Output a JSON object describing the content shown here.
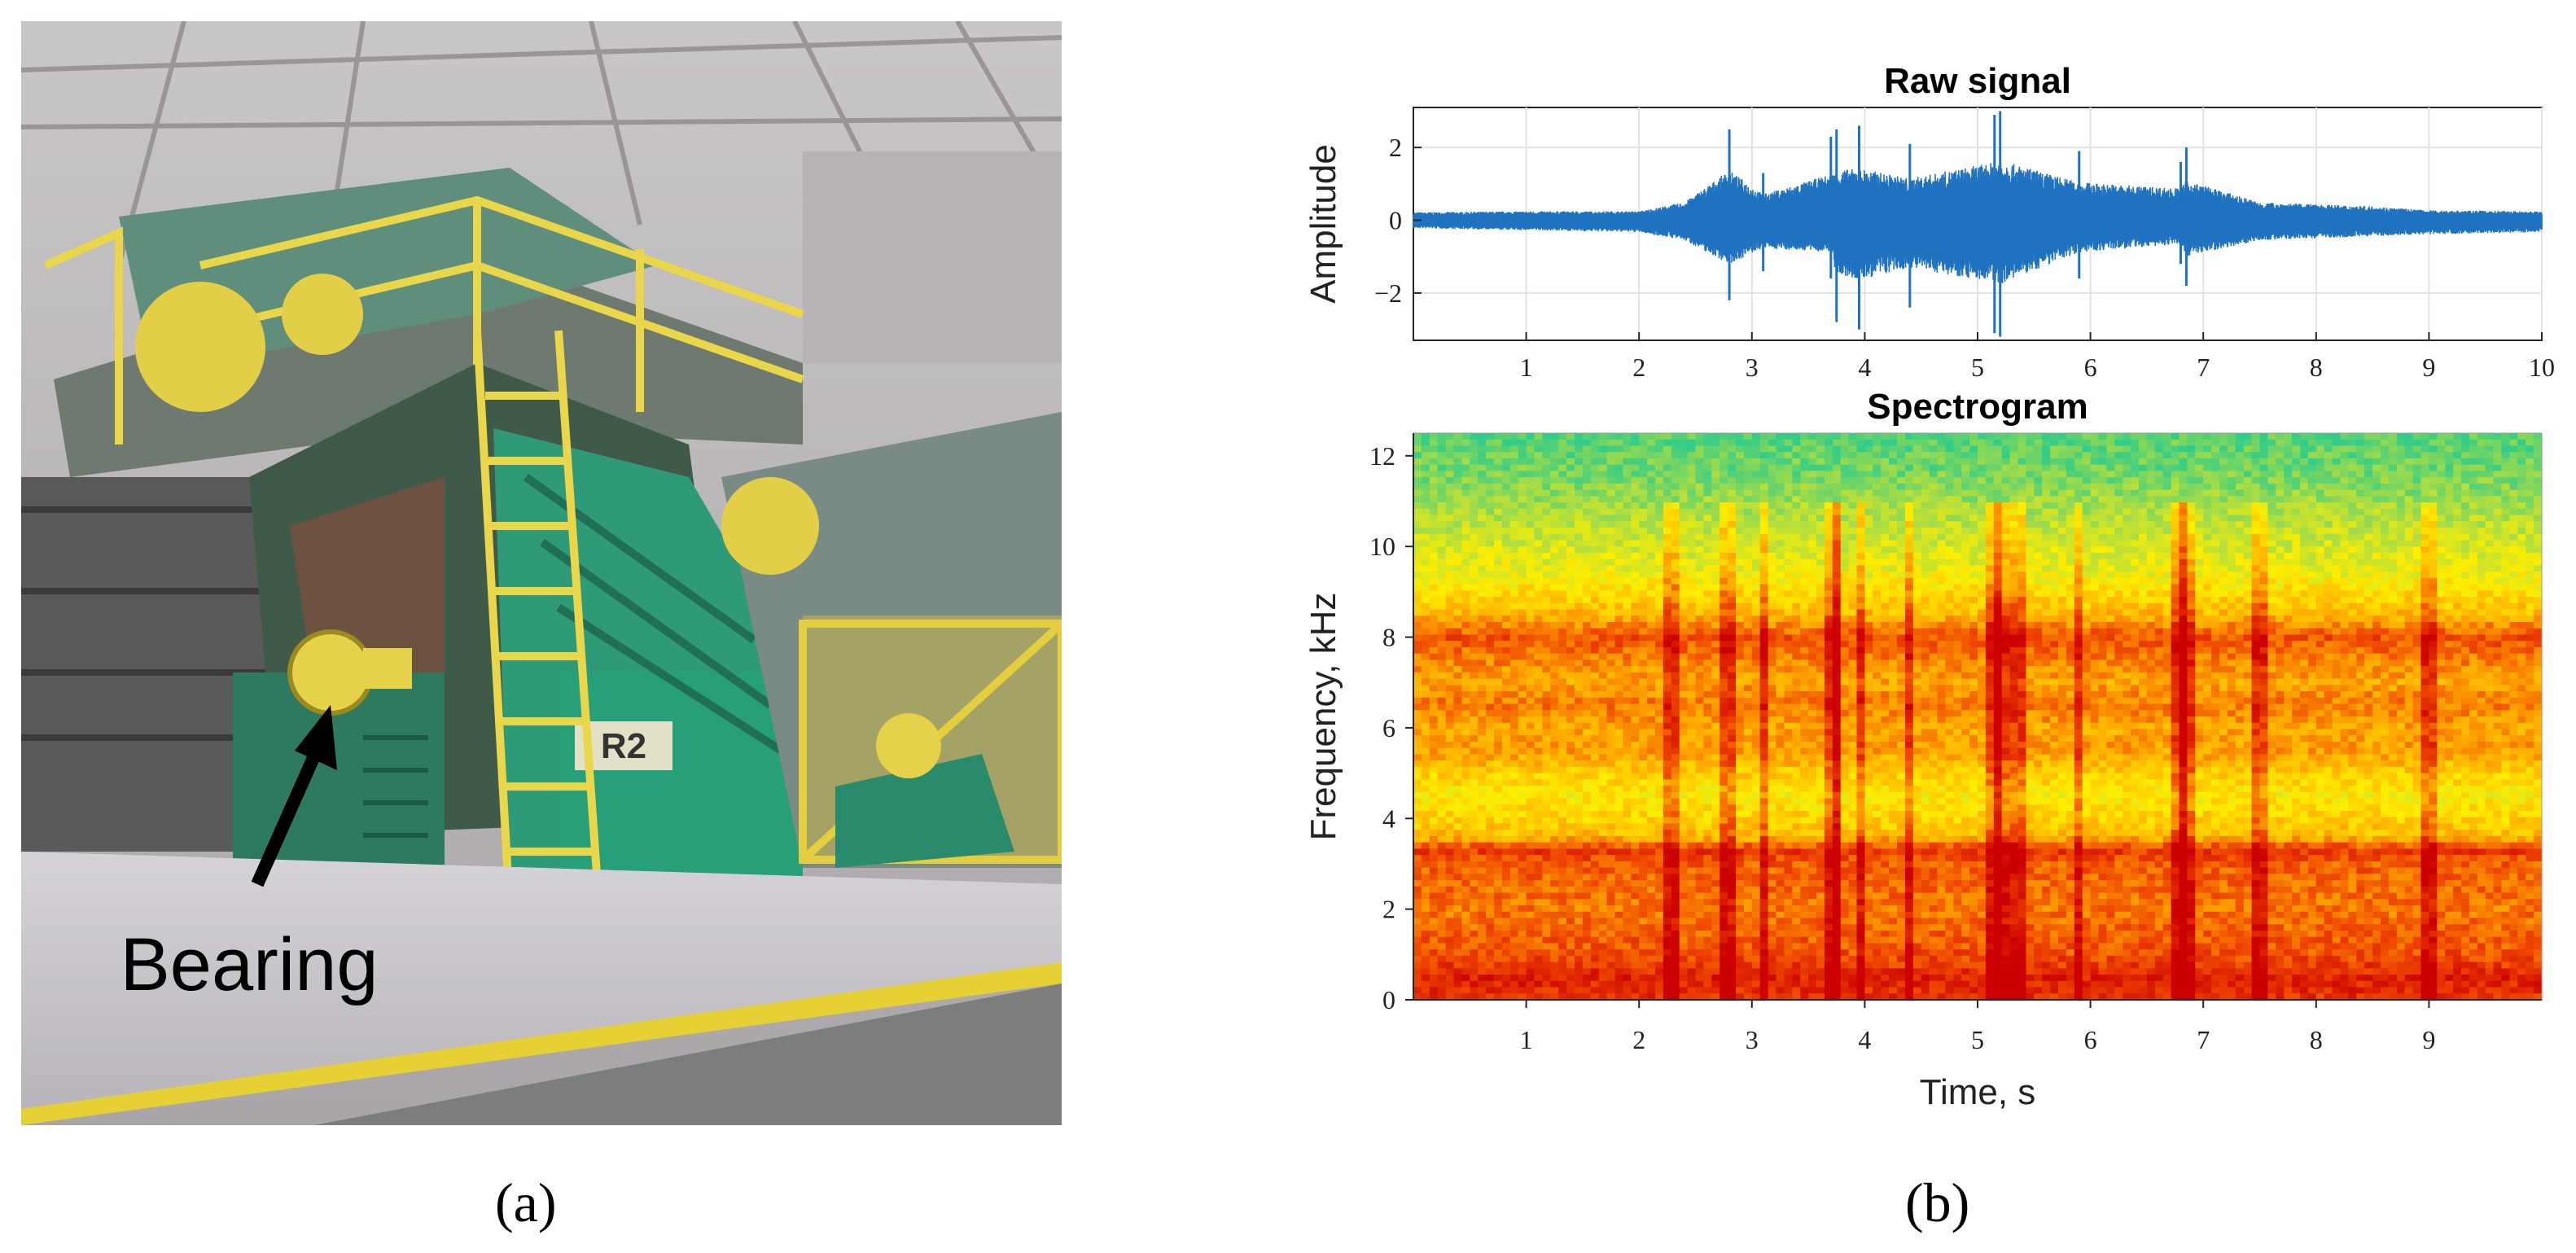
{
  "figure": {
    "caption_a": "(a)",
    "caption_b": "(b)",
    "photo_label": "Bearing",
    "machine_plate": "R2"
  },
  "chart_data": [
    {
      "type": "line",
      "title": "Raw signal",
      "xlabel": "",
      "ylabel": "Amplitude",
      "xlim": [
        0,
        10
      ],
      "ylim": [
        -3.3,
        3.1
      ],
      "xticks": [
        1,
        2,
        3,
        4,
        5,
        6,
        7,
        8,
        9,
        10
      ],
      "yticks": [
        -2,
        0,
        2
      ],
      "grid": true,
      "series_color": "#1f72c0",
      "series": [
        {
          "x": [
            0.0,
            1.0,
            2.0,
            2.4,
            2.8,
            3.1,
            3.7,
            3.75,
            3.95,
            4.4,
            5.15,
            5.2,
            5.9,
            6.8,
            6.85,
            7.5,
            8.5,
            9.0,
            10.0
          ],
          "values": [
            0.4,
            0.45,
            0.45,
            0.9,
            2.5,
            1.3,
            2.3,
            2.5,
            2.6,
            2.1,
            2.9,
            3.0,
            1.9,
            1.6,
            2.0,
            0.9,
            0.7,
            0.5,
            0.45
          ],
          "values_min": [
            -0.4,
            -0.5,
            -0.6,
            -1.0,
            -2.2,
            -1.4,
            -1.6,
            -2.8,
            -3.0,
            -2.4,
            -3.1,
            -3.2,
            -1.6,
            -1.2,
            -1.8,
            -1.0,
            -0.8,
            -0.7,
            -0.6
          ]
        }
      ]
    },
    {
      "type": "heatmap",
      "title": "Spectrogram",
      "xlabel": "Time, s",
      "ylabel": "Frequency, kHz",
      "xlim": [
        0,
        10
      ],
      "ylim": [
        0,
        12.5
      ],
      "xticks": [
        1,
        2,
        3,
        4,
        5,
        6,
        7,
        8,
        9
      ],
      "yticks": [
        0,
        2,
        4,
        6,
        8,
        10,
        12
      ],
      "colormap": [
        "#33cc88",
        "#aadd44",
        "#ffee00",
        "#ffaa00",
        "#ee4400",
        "#cc0000"
      ],
      "frequency_profile_khz": [
        0,
        0.5,
        1.0,
        2.0,
        3.0,
        3.3,
        3.6,
        4.5,
        5.0,
        5.5,
        6.0,
        6.5,
        7.0,
        7.5,
        8.0,
        8.5,
        9.5,
        10.5,
        11.5,
        12.5
      ],
      "frequency_profile_level": [
        0.85,
        0.9,
        0.78,
        0.7,
        0.75,
        0.85,
        0.55,
        0.4,
        0.5,
        0.62,
        0.6,
        0.7,
        0.6,
        0.68,
        0.78,
        0.55,
        0.35,
        0.25,
        0.12,
        0.05
      ],
      "impulse_times_s": [
        2.3,
        2.8,
        3.1,
        3.7,
        3.75,
        3.95,
        4.4,
        5.15,
        5.2,
        5.35,
        5.9,
        6.8,
        6.85,
        7.5,
        9.0
      ]
    }
  ]
}
